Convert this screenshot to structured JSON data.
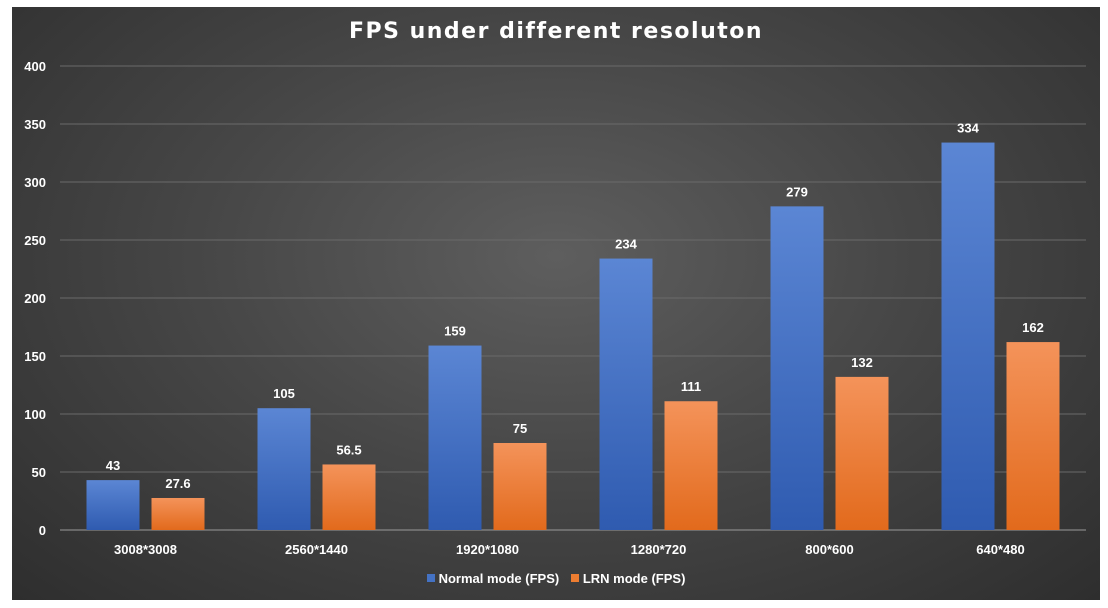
{
  "chart_data": {
    "type": "bar",
    "title": "FPS under different resoluton",
    "categories": [
      "3008*3008",
      "2560*1440",
      "1920*1080",
      "1280*720",
      "800*600",
      "640*480"
    ],
    "series": [
      {
        "name": "Normal mode (FPS)",
        "values": [
          43,
          105,
          159,
          234,
          279,
          334
        ],
        "labels": [
          "43",
          "105",
          "159",
          "234",
          "279",
          "334"
        ],
        "color": "#4472C4"
      },
      {
        "name": "LRN mode (FPS)",
        "values": [
          27.6,
          56.5,
          75,
          111,
          132,
          162
        ],
        "labels": [
          "27.6",
          "56.5",
          "75",
          "111",
          "132",
          "162"
        ],
        "color": "#ED7D31"
      }
    ],
    "ylim": [
      0,
      400
    ],
    "yticks": [
      0,
      50,
      100,
      150,
      200,
      250,
      300,
      350,
      400
    ],
    "grid": true,
    "legend_position": "bottom",
    "xlabel": "",
    "ylabel": ""
  }
}
